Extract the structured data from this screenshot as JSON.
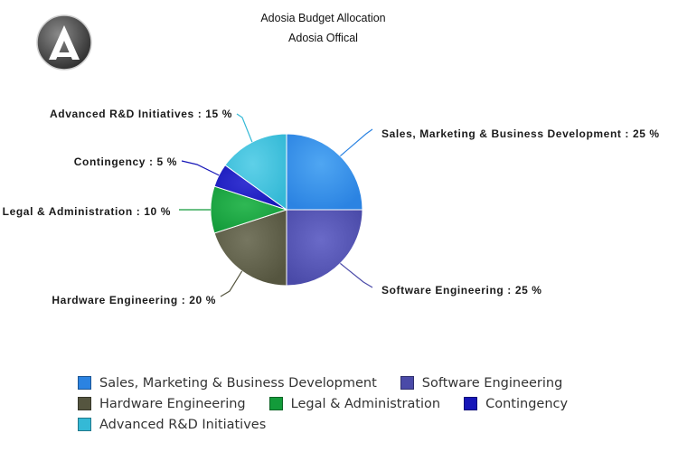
{
  "title": "Adosia Budget Allocation",
  "subtitle": "Adosia Offical",
  "logo": {
    "icon": "adosia-logo"
  },
  "chart_data": {
    "type": "pie",
    "title": "Adosia Budget Allocation",
    "subtitle": "Adosia Offical",
    "slices": [
      {
        "name": "Sales, Marketing & Business Development",
        "value": 25,
        "label": "Sales, Marketing & Business Development : 25 %",
        "color": "#2b83e2",
        "light": "#4fa6f2"
      },
      {
        "name": "Software Engineering",
        "value": 25,
        "label": "Software Engineering : 25 %",
        "color": "#4a4aa8",
        "light": "#6a6ac8"
      },
      {
        "name": "Hardware Engineering",
        "value": 20,
        "label": "Hardware Engineering : 20 %",
        "color": "#55553f",
        "light": "#767660"
      },
      {
        "name": "Legal & Administration",
        "value": 10,
        "label": "Legal & Administration : 10 %",
        "color": "#139b3a",
        "light": "#2fb854"
      },
      {
        "name": "Contingency",
        "value": 5,
        "label": "Contingency : 5 %",
        "color": "#1616b8",
        "light": "#3535d2"
      },
      {
        "name": "Advanced R&D Initiatives",
        "value": 15,
        "label": "Advanced R&D Initiatives : 15 %",
        "color": "#34b9d6",
        "light": "#5ed0e8"
      }
    ],
    "start_angle": "top",
    "direction": "clockwise",
    "legend_position": "bottom"
  }
}
